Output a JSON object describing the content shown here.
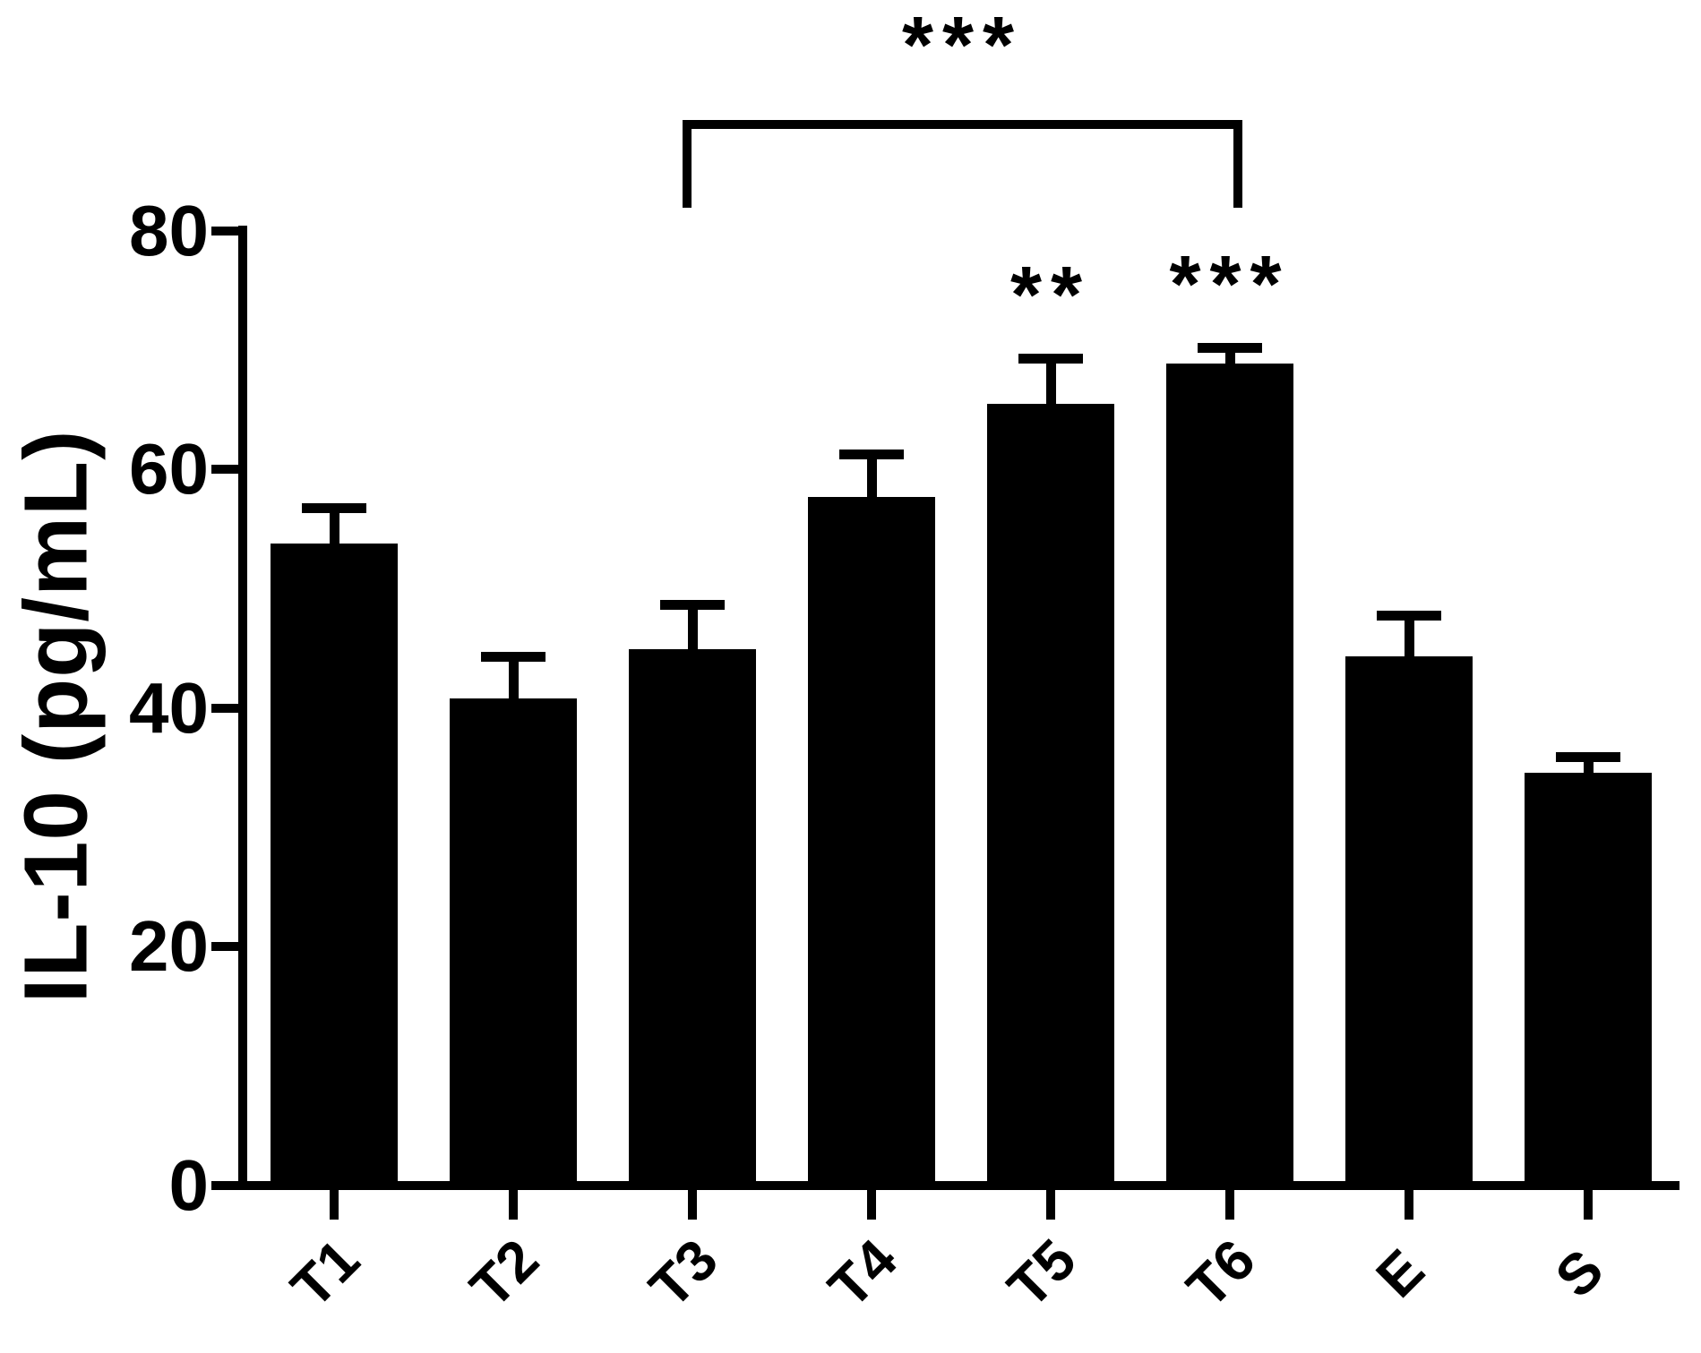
{
  "figure": {
    "background": "#ffffff",
    "ink_color": "#000000"
  },
  "chart_data": {
    "type": "bar",
    "title": "",
    "xlabel": "",
    "ylabel": "IL-10 (pg/mL)",
    "ylim": [
      0,
      80
    ],
    "yticks": [
      0,
      20,
      40,
      60,
      80
    ],
    "grid": false,
    "legend": null,
    "bar_color": "#000000",
    "categories": [
      "T1",
      "T2",
      "T3",
      "T4",
      "T5",
      "T6",
      "E",
      "S"
    ],
    "values": [
      53.8,
      40.8,
      44.9,
      57.7,
      65.5,
      68.9,
      44.3,
      34.6
    ],
    "errors": [
      3.0,
      3.5,
      3.8,
      3.6,
      3.8,
      1.3,
      3.5,
      1.3
    ],
    "errors_shown": "upper-only",
    "annotations": [
      {
        "type": "bracket",
        "label": "***",
        "from": "T3",
        "to": "T6"
      },
      {
        "type": "star",
        "label": "**",
        "category": "T5"
      },
      {
        "type": "star",
        "label": "***",
        "category": "T6"
      }
    ]
  }
}
